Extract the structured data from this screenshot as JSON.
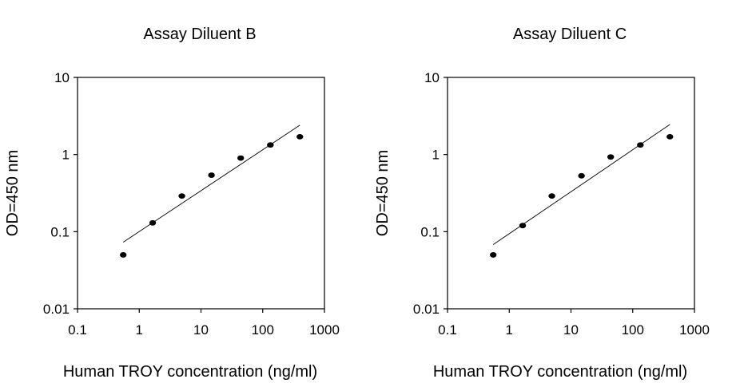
{
  "chart_data": [
    {
      "type": "scatter",
      "title": "Assay Diluent B",
      "xlabel": "Human TROY concentration (ng/ml)",
      "ylabel": "OD=450 nm",
      "xscale": "log",
      "yscale": "log",
      "xlim": [
        0.1,
        1000
      ],
      "ylim": [
        0.01,
        10
      ],
      "xticks": [
        "0.1",
        "1",
        "10",
        "100",
        "1000"
      ],
      "yticks": [
        "0.01",
        "0.1",
        "1",
        "10"
      ],
      "grid": false,
      "points": [
        {
          "x": 0.55,
          "y": 0.05
        },
        {
          "x": 1.65,
          "y": 0.13
        },
        {
          "x": 4.9,
          "y": 0.29
        },
        {
          "x": 14.8,
          "y": 0.54
        },
        {
          "x": 44,
          "y": 0.9
        },
        {
          "x": 133,
          "y": 1.33
        },
        {
          "x": 400,
          "y": 1.7
        }
      ],
      "fit_line": [
        {
          "x": 0.55,
          "y": 0.073
        },
        {
          "x": 400,
          "y": 2.4
        }
      ]
    },
    {
      "type": "scatter",
      "title": "Assay Diluent C",
      "xlabel": "Human TROY concentration (ng/ml)",
      "ylabel": "OD=450 nm",
      "xscale": "log",
      "yscale": "log",
      "xlim": [
        0.1,
        1000
      ],
      "ylim": [
        0.01,
        10
      ],
      "xticks": [
        "0.1",
        "1",
        "10",
        "100",
        "1000"
      ],
      "yticks": [
        "0.01",
        "0.1",
        "1",
        "10"
      ],
      "grid": false,
      "points": [
        {
          "x": 0.55,
          "y": 0.05
        },
        {
          "x": 1.65,
          "y": 0.12
        },
        {
          "x": 4.9,
          "y": 0.29
        },
        {
          "x": 14.8,
          "y": 0.53
        },
        {
          "x": 44,
          "y": 0.93
        },
        {
          "x": 133,
          "y": 1.33
        },
        {
          "x": 400,
          "y": 1.7
        }
      ],
      "fit_line": [
        {
          "x": 0.55,
          "y": 0.068
        },
        {
          "x": 400,
          "y": 2.45
        }
      ]
    }
  ]
}
